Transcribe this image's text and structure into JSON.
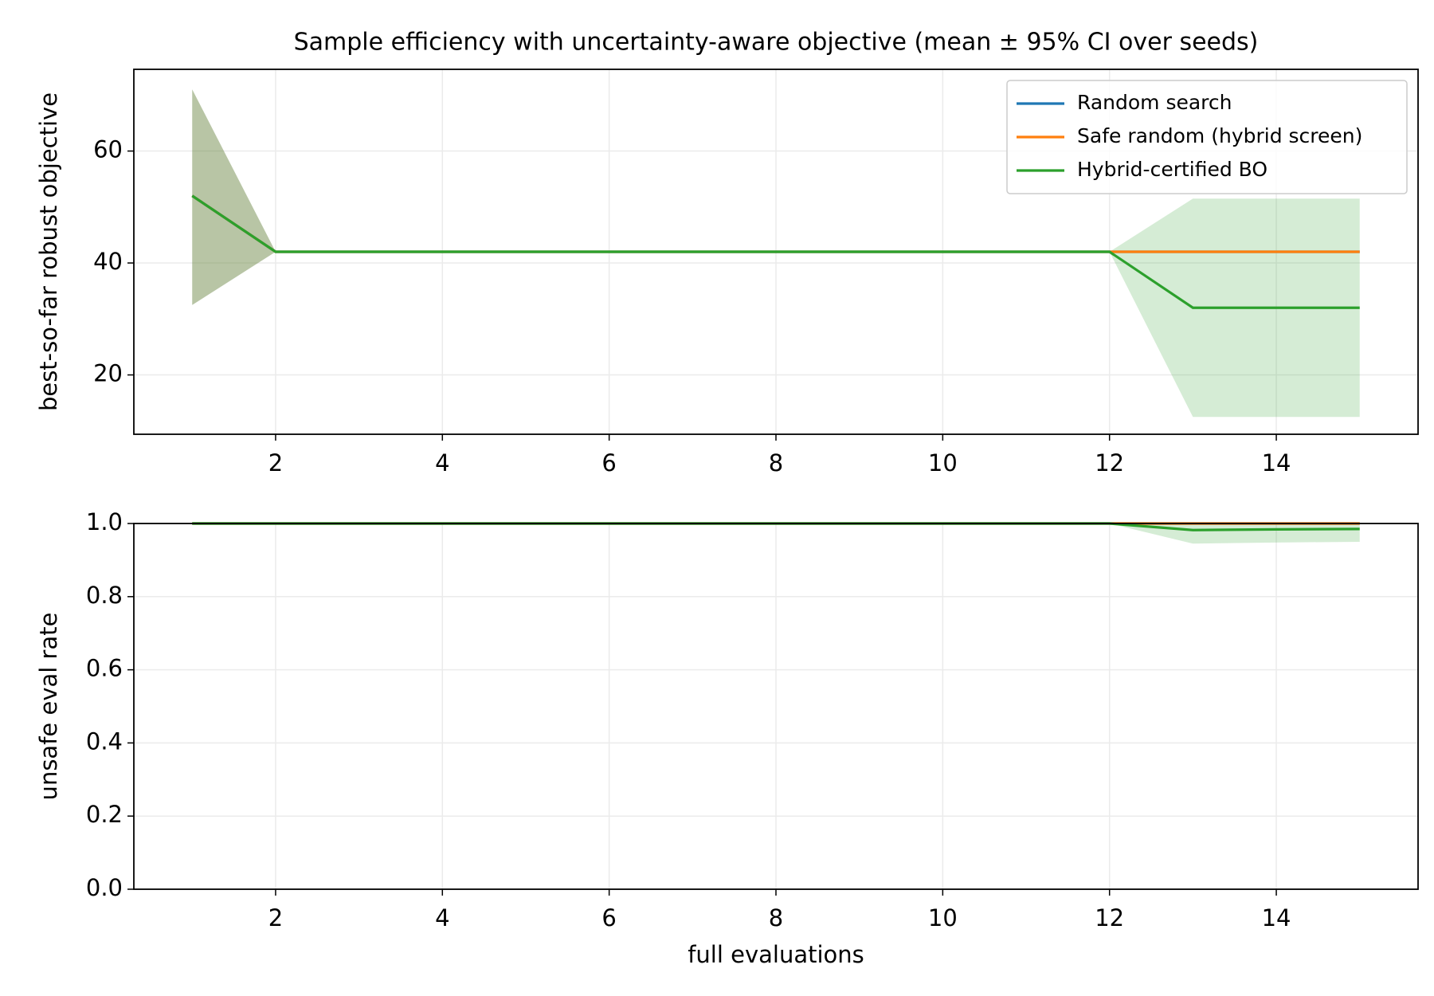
{
  "chart_data": [
    {
      "type": "line",
      "title": "Sample efficiency with uncertainty-aware objective (mean ± 95% CI over seeds)",
      "y_label": "best-so-far robust objective",
      "x": [
        1,
        2,
        3,
        4,
        5,
        6,
        7,
        8,
        9,
        10,
        11,
        12,
        13,
        14,
        15
      ],
      "xlim": [
        0.3,
        15.7
      ],
      "xticks": [
        2,
        4,
        6,
        8,
        10,
        12,
        14
      ],
      "ylim": [
        9.4,
        74.6
      ],
      "yticks": [
        20,
        40,
        60
      ],
      "grid": true,
      "legend": "upper right",
      "series": [
        {
          "name": "Random search",
          "color": "#1f77b4",
          "values": [
            52,
            42,
            42,
            42,
            42,
            42,
            42,
            42,
            42,
            42,
            42,
            42,
            42,
            42,
            42
          ],
          "lower": [
            32.5,
            42,
            42,
            42,
            42,
            42,
            42,
            42,
            42,
            42,
            42,
            42,
            42,
            42,
            42
          ],
          "upper": [
            71,
            42,
            42,
            42,
            42,
            42,
            42,
            42,
            42,
            42,
            42,
            42,
            42,
            42,
            42
          ]
        },
        {
          "name": "Safe random (hybrid screen)",
          "color": "#ff7f0e",
          "values": [
            52,
            42,
            42,
            42,
            42,
            42,
            42,
            42,
            42,
            42,
            42,
            42,
            42,
            42,
            42
          ],
          "lower": [
            32.5,
            42,
            42,
            42,
            42,
            42,
            42,
            42,
            42,
            42,
            42,
            42,
            42,
            42,
            42
          ],
          "upper": [
            71,
            42,
            42,
            42,
            42,
            42,
            42,
            42,
            42,
            42,
            42,
            42,
            42,
            42,
            42
          ]
        },
        {
          "name": "Hybrid-certified BO",
          "color": "#2ca02c",
          "values": [
            52,
            42,
            42,
            42,
            42,
            42,
            42,
            42,
            42,
            42,
            42,
            42,
            32,
            32,
            32
          ],
          "lower": [
            32.5,
            42,
            42,
            42,
            42,
            42,
            42,
            42,
            42,
            42,
            42,
            42,
            12.5,
            12.5,
            12.5
          ],
          "upper": [
            71,
            42,
            42,
            42,
            42,
            42,
            42,
            42,
            42,
            42,
            42,
            42,
            51.5,
            51.5,
            51.5
          ]
        }
      ]
    },
    {
      "type": "line",
      "y_label": "unsafe eval rate",
      "x_label": "full evaluations",
      "x": [
        1,
        2,
        3,
        4,
        5,
        6,
        7,
        8,
        9,
        10,
        11,
        12,
        13,
        14,
        15
      ],
      "xlim": [
        0.3,
        15.7
      ],
      "xticks": [
        2,
        4,
        6,
        8,
        10,
        12,
        14
      ],
      "ylim": [
        0,
        1
      ],
      "yticks": [
        {
          "value": 0,
          "label": "0.0"
        },
        0.2,
        0.4,
        0.6,
        0.8,
        {
          "value": 1,
          "label": "1.0"
        }
      ],
      "grid": true,
      "series": [
        {
          "color": "#1f77b4",
          "values": [
            1,
            1,
            1,
            1,
            1,
            1,
            1,
            1,
            1,
            1,
            1,
            1,
            1,
            1,
            1
          ],
          "lower": [
            1,
            1,
            1,
            1,
            1,
            1,
            1,
            1,
            1,
            1,
            1,
            1,
            1,
            1,
            1
          ],
          "upper": [
            1,
            1,
            1,
            1,
            1,
            1,
            1,
            1,
            1,
            1,
            1,
            1,
            1,
            1,
            1
          ]
        },
        {
          "color": "#ff7f0e",
          "values": [
            1,
            1,
            1,
            1,
            1,
            1,
            1,
            1,
            1,
            1,
            1,
            1,
            1,
            1,
            1
          ],
          "lower": [
            1,
            1,
            1,
            1,
            1,
            1,
            1,
            1,
            1,
            1,
            1,
            1,
            1,
            1,
            1
          ],
          "upper": [
            1,
            1,
            1,
            1,
            1,
            1,
            1,
            1,
            1,
            1,
            1,
            1,
            1,
            1,
            1
          ]
        },
        {
          "color": "#2ca02c",
          "values": [
            1,
            1,
            1,
            1,
            1,
            1,
            1,
            1,
            1,
            1,
            1,
            1,
            0.982,
            0.984,
            0.985
          ],
          "lower": [
            1,
            1,
            1,
            1,
            1,
            1,
            1,
            1,
            1,
            1,
            1,
            1,
            0.945,
            0.948,
            0.95
          ],
          "upper": [
            1,
            1,
            1,
            1,
            1,
            1,
            1,
            1,
            1,
            1,
            1,
            1,
            1,
            1,
            1
          ]
        }
      ]
    }
  ]
}
